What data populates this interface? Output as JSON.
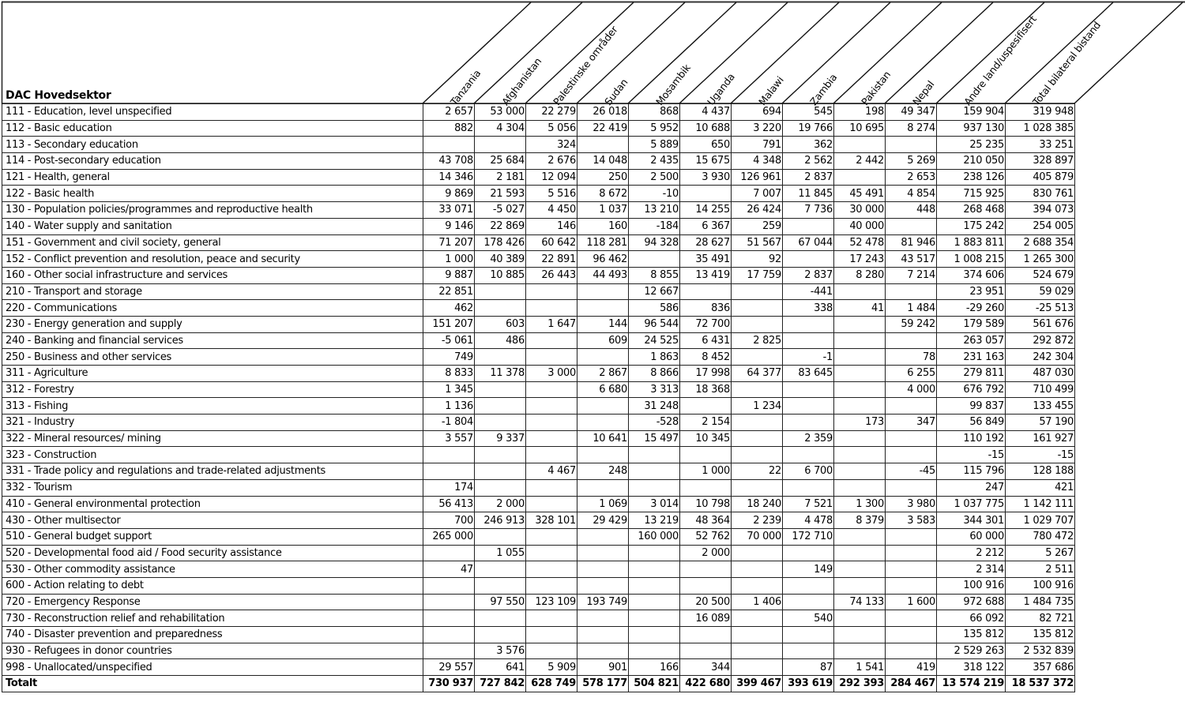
{
  "table": {
    "title": "DAC Hovedsektor",
    "columns": [
      "Tanzania",
      "Afghanistan",
      "Palestinske områder",
      "Sudan",
      "Mosambik",
      "Uganda",
      "Malawi",
      "Zambia",
      "Pakistan",
      "Nepal",
      "Andre land/uspesifisert",
      "Total bilateral bistand"
    ],
    "rows": [
      {
        "label": "111 - Education, level unspecified",
        "values": [
          "2 657",
          "53 000",
          "22 279",
          "26 018",
          "868",
          "4 437",
          "694",
          "545",
          "198",
          "49 347",
          "159 904",
          "319 948"
        ]
      },
      {
        "label": "112 - Basic education",
        "values": [
          "882",
          "4 304",
          "5 056",
          "22 419",
          "5 952",
          "10 688",
          "3 220",
          "19 766",
          "10 695",
          "8 274",
          "937 130",
          "1 028 385"
        ]
      },
      {
        "label": "113 - Secondary education",
        "values": [
          "",
          "",
          "324",
          "",
          "5 889",
          "650",
          "791",
          "362",
          "",
          "",
          "25 235",
          "33 251"
        ]
      },
      {
        "label": "114 - Post-secondary education",
        "values": [
          "43 708",
          "25 684",
          "2 676",
          "14 048",
          "2 435",
          "15 675",
          "4 348",
          "2 562",
          "2 442",
          "5 269",
          "210 050",
          "328 897"
        ]
      },
      {
        "label": "121 - Health, general",
        "values": [
          "14 346",
          "2 181",
          "12 094",
          "250",
          "2 500",
          "3 930",
          "126 961",
          "2 837",
          "",
          "2 653",
          "238 126",
          "405 879"
        ]
      },
      {
        "label": "122 - Basic health",
        "values": [
          "9 869",
          "21 593",
          "5 516",
          "8 672",
          "-10",
          "",
          "7 007",
          "11 845",
          "45 491",
          "4 854",
          "715 925",
          "830 761"
        ]
      },
      {
        "label": "130 - Population policies/programmes and reproductive health",
        "values": [
          "33 071",
          "-5 027",
          "4 450",
          "1 037",
          "13 210",
          "14 255",
          "26 424",
          "7 736",
          "30 000",
          "448",
          "268 468",
          "394 073"
        ]
      },
      {
        "label": "140 - Water supply and sanitation",
        "values": [
          "9 146",
          "22 869",
          "146",
          "160",
          "-184",
          "6 367",
          "259",
          "",
          "40 000",
          "",
          "175 242",
          "254 005"
        ]
      },
      {
        "label": "151 - Government and civil society, general",
        "values": [
          "71 207",
          "178 426",
          "60 642",
          "118 281",
          "94 328",
          "28 627",
          "51 567",
          "67 044",
          "52 478",
          "81 946",
          "1 883 811",
          "2 688 354"
        ]
      },
      {
        "label": "152 - Conflict prevention and resolution, peace and security",
        "values": [
          "1 000",
          "40 389",
          "22 891",
          "96 462",
          "",
          "35 491",
          "92",
          "",
          "17 243",
          "43 517",
          "1 008 215",
          "1 265 300"
        ]
      },
      {
        "label": "160 - Other social infrastructure and services",
        "values": [
          "9 887",
          "10 885",
          "26 443",
          "44 493",
          "8 855",
          "13 419",
          "17 759",
          "2 837",
          "8 280",
          "7 214",
          "374 606",
          "524 679"
        ]
      },
      {
        "label": "210 - Transport and storage",
        "values": [
          "22 851",
          "",
          "",
          "",
          "12 667",
          "",
          "",
          "-441",
          "",
          "",
          "23 951",
          "59 029"
        ]
      },
      {
        "label": "220 - Communications",
        "values": [
          "462",
          "",
          "",
          "",
          "586",
          "836",
          "",
          "338",
          "41",
          "1 484",
          "-29 260",
          "-25 513"
        ]
      },
      {
        "label": "230 - Energy generation and supply",
        "values": [
          "151 207",
          "603",
          "1 647",
          "144",
          "96 544",
          "72 700",
          "",
          "",
          "",
          "59 242",
          "179 589",
          "561 676"
        ]
      },
      {
        "label": "240 - Banking and financial services",
        "values": [
          "-5 061",
          "486",
          "",
          "609",
          "24 525",
          "6 431",
          "2 825",
          "",
          "",
          "",
          "263 057",
          "292 872"
        ]
      },
      {
        "label": "250 - Business and other services",
        "values": [
          "749",
          "",
          "",
          "",
          "1 863",
          "8 452",
          "",
          "-1",
          "",
          "78",
          "231 163",
          "242 304"
        ]
      },
      {
        "label": "311 - Agriculture",
        "values": [
          "8 833",
          "11 378",
          "3 000",
          "2 867",
          "8 866",
          "17 998",
          "64 377",
          "83 645",
          "",
          "6 255",
          "279 811",
          "487 030"
        ]
      },
      {
        "label": "312 - Forestry",
        "values": [
          "1 345",
          "",
          "",
          "6 680",
          "3 313",
          "18 368",
          "",
          "",
          "",
          "4 000",
          "676 792",
          "710 499"
        ]
      },
      {
        "label": "313 - Fishing",
        "values": [
          "1 136",
          "",
          "",
          "",
          "31 248",
          "",
          "1 234",
          "",
          "",
          "",
          "99 837",
          "133 455"
        ]
      },
      {
        "label": "321 - Industry",
        "values": [
          "-1 804",
          "",
          "",
          "",
          "-528",
          "2 154",
          "",
          "",
          "173",
          "347",
          "56 849",
          "57 190"
        ]
      },
      {
        "label": "322 - Mineral resources/ mining",
        "values": [
          "3 557",
          "9 337",
          "",
          "10 641",
          "15 497",
          "10 345",
          "",
          "2 359",
          "",
          "",
          "110 192",
          "161 927"
        ]
      },
      {
        "label": "323 - Construction",
        "values": [
          "",
          "",
          "",
          "",
          "",
          "",
          "",
          "",
          "",
          "",
          "-15",
          "-15"
        ]
      },
      {
        "label": "331 - Trade policy and regulations and trade-related adjustments",
        "values": [
          "",
          "",
          "4 467",
          "248",
          "",
          "1 000",
          "22",
          "6 700",
          "",
          "-45",
          "115 796",
          "128 188"
        ]
      },
      {
        "label": "332 - Tourism",
        "values": [
          "174",
          "",
          "",
          "",
          "",
          "",
          "",
          "",
          "",
          "",
          "247",
          "421"
        ]
      },
      {
        "label": "410 - General environmental protection",
        "values": [
          "56 413",
          "2 000",
          "",
          "1 069",
          "3 014",
          "10 798",
          "18 240",
          "7 521",
          "1 300",
          "3 980",
          "1 037 775",
          "1 142 111"
        ]
      },
      {
        "label": "430 - Other multisector",
        "values": [
          "700",
          "246 913",
          "328 101",
          "29 429",
          "13 219",
          "48 364",
          "2 239",
          "4 478",
          "8 379",
          "3 583",
          "344 301",
          "1 029 707"
        ]
      },
      {
        "label": "510 - General budget support",
        "values": [
          "265 000",
          "",
          "",
          "",
          "160 000",
          "52 762",
          "70 000",
          "172 710",
          "",
          "",
          "60 000",
          "780 472"
        ]
      },
      {
        "label": "520 - Developmental food aid / Food security assistance",
        "values": [
          "",
          "1 055",
          "",
          "",
          "",
          "2 000",
          "",
          "",
          "",
          "",
          "2 212",
          "5 267"
        ]
      },
      {
        "label": "530 - Other commodity assistance",
        "values": [
          "47",
          "",
          "",
          "",
          "",
          "",
          "",
          "149",
          "",
          "",
          "2 314",
          "2 511"
        ]
      },
      {
        "label": "600 - Action relating to debt",
        "values": [
          "",
          "",
          "",
          "",
          "",
          "",
          "",
          "",
          "",
          "",
          "100 916",
          "100 916"
        ]
      },
      {
        "label": "720 - Emergency Response",
        "values": [
          "",
          "97 550",
          "123 109",
          "193 749",
          "",
          "20 500",
          "1 406",
          "",
          "74 133",
          "1 600",
          "972 688",
          "1 484 735"
        ]
      },
      {
        "label": "730 - Reconstruction relief and rehabilitation",
        "values": [
          "",
          "",
          "",
          "",
          "",
          "16 089",
          "",
          "540",
          "",
          "",
          "66 092",
          "82 721"
        ]
      },
      {
        "label": "740 - Disaster prevention and preparedness",
        "values": [
          "",
          "",
          "",
          "",
          "",
          "",
          "",
          "",
          "",
          "",
          "135 812",
          "135 812"
        ]
      },
      {
        "label": "930 - Refugees in donor countries",
        "values": [
          "",
          "3 576",
          "",
          "",
          "",
          "",
          "",
          "",
          "",
          "",
          "2 529 263",
          "2 532 839"
        ]
      },
      {
        "label": "998 - Unallocated/unspecified",
        "values": [
          "29 557",
          "641",
          "5 909",
          "901",
          "166",
          "344",
          "",
          "87",
          "1 541",
          "419",
          "318 122",
          "357 686"
        ]
      }
    ],
    "total": {
      "label": "Totalt",
      "values": [
        "730 937",
        "727 842",
        "628 749",
        "578 177",
        "504 821",
        "422 680",
        "399 467",
        "393 619",
        "292 393",
        "284 467",
        "13 574 219",
        "18 537 372"
      ]
    }
  }
}
